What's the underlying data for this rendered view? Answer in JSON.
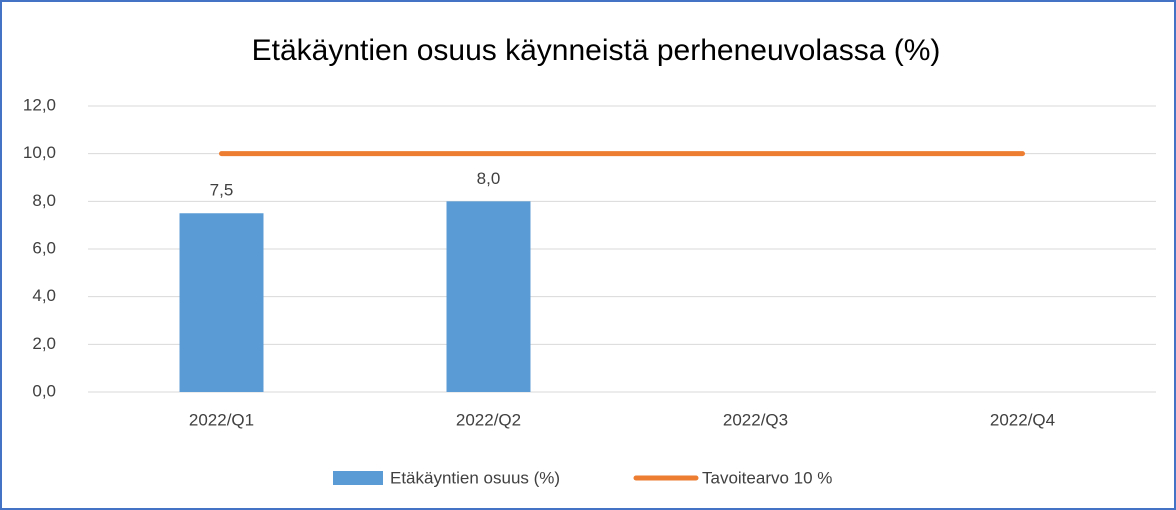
{
  "chart_data": {
    "type": "bar",
    "title": "Etäkäyntien osuus käynneistä perheneuvolassa (%)",
    "categories": [
      "2022/Q1",
      "2022/Q2",
      "2022/Q3",
      "2022/Q4"
    ],
    "series": [
      {
        "name": "Etäkäyntien osuus (%)",
        "type": "bar",
        "color": "#5b9bd5",
        "values": [
          7.5,
          8.0,
          null,
          null
        ],
        "value_labels": [
          "7,5",
          "8,0",
          null,
          null
        ]
      },
      {
        "name": "Tavoitearvo 10 %",
        "type": "line",
        "color": "#ed7d31",
        "values": [
          10,
          10,
          10,
          10
        ]
      }
    ],
    "ylim": [
      0,
      12
    ],
    "yticks": [
      {
        "value": 0,
        "label": "0,0"
      },
      {
        "value": 2,
        "label": "2,0"
      },
      {
        "value": 4,
        "label": "4,0"
      },
      {
        "value": 6,
        "label": "6,0"
      },
      {
        "value": 8,
        "label": "8,0"
      },
      {
        "value": 10,
        "label": "10,0"
      },
      {
        "value": 12,
        "label": "12,0"
      }
    ],
    "grid": true,
    "legend": "bottom"
  }
}
